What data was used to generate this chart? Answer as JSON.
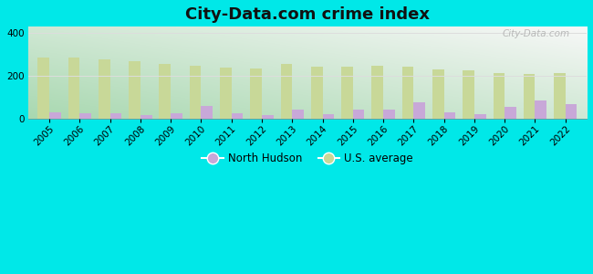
{
  "title": "City-Data.com crime index",
  "years": [
    2005,
    2006,
    2007,
    2008,
    2009,
    2010,
    2011,
    2012,
    2013,
    2014,
    2015,
    2016,
    2017,
    2018,
    2019,
    2020,
    2021,
    2022
  ],
  "north_hudson": [
    32,
    25,
    28,
    18,
    28,
    62,
    28,
    18,
    42,
    22,
    45,
    42,
    80,
    32,
    22,
    55,
    88,
    68
  ],
  "us_average": [
    288,
    288,
    278,
    268,
    255,
    248,
    238,
    235,
    255,
    242,
    243,
    248,
    242,
    230,
    225,
    215,
    212,
    215
  ],
  "nh_color": "#c8a8d8",
  "us_color": "#c8d898",
  "bg_outer": "#00e8e8",
  "bg_plot_bottom_left": "#a8d8b0",
  "bg_plot_top_right": "#f8f8f8",
  "ylim": [
    0,
    430
  ],
  "yticks": [
    0,
    200,
    400
  ],
  "bar_width": 0.38,
  "legend_nh": "North Hudson",
  "legend_us": "U.S. average",
  "watermark": "City-Data.com",
  "title_fontsize": 13,
  "tick_fontsize": 7.5,
  "grid_color": "#dddddd"
}
